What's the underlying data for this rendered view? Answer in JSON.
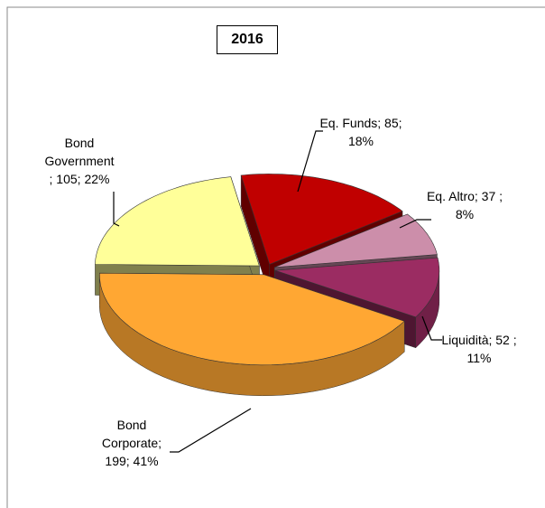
{
  "chart_data": {
    "type": "pie",
    "title": "2016",
    "categories": [
      "Eq. Funds",
      "Eq. Altro",
      "Liquidità",
      "Bond Corporate",
      "Bond Government"
    ],
    "values": [
      85,
      37,
      52,
      199,
      105
    ],
    "value_labels": [
      "Eq. Funds; 85; 18%",
      "Eq. Altro; 37 ; 8%",
      "Liquidità; 52 ; 11%",
      "Bond Corporate; 199; 41%",
      "Bond Government; 105; 22%"
    ],
    "colors": [
      "#c00000",
      "#cc8eaa",
      "#9b2c62",
      "#ffa733",
      "#ffff99"
    ]
  }
}
